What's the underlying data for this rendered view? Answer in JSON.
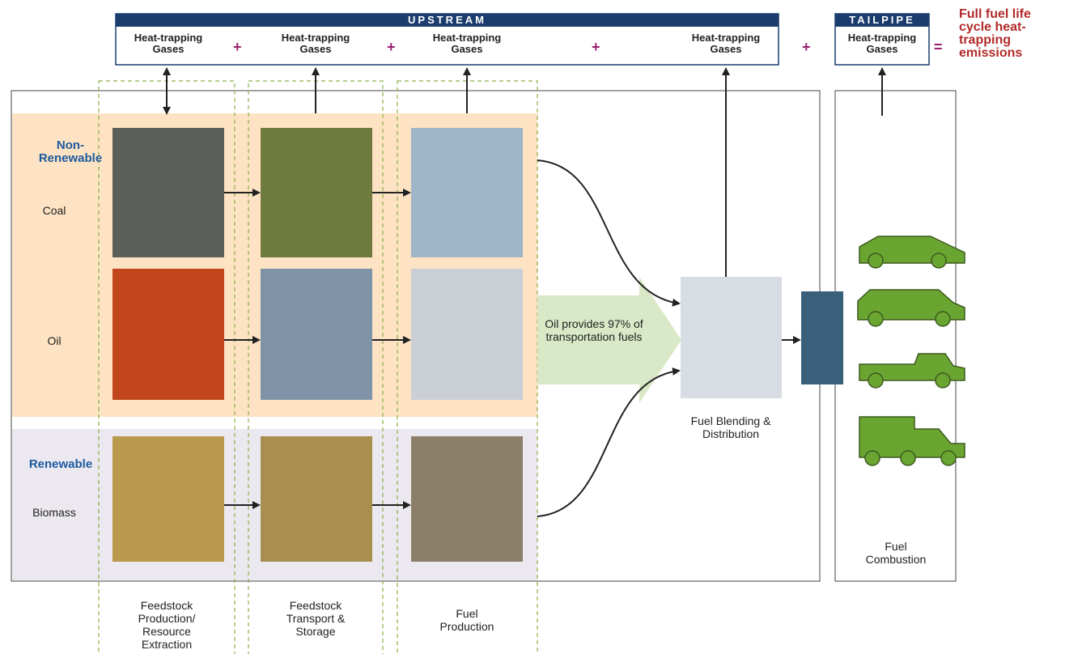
{
  "upstream": {
    "title": "UPSTREAM",
    "items": [
      "Heat-trapping Gases",
      "Heat-trapping Gases",
      "Heat-trapping Gases",
      "Heat-trapping Gases"
    ],
    "operators": [
      "+",
      "+",
      "+",
      "+"
    ]
  },
  "tailpipe": {
    "title": "TAILPIPE",
    "item": "Heat-trapping Gases",
    "operator": "=",
    "result": "Full fuel life cycle heat-trapping emissions"
  },
  "groups": [
    {
      "label": "Non-Renewable",
      "fuels": [
        "Coal",
        "Oil"
      ]
    },
    {
      "label": "Renewable",
      "fuels": [
        "Biomass"
      ]
    }
  ],
  "stages": [
    "Feedstock Production/ Resource Extraction",
    "Feedstock Transport & Storage",
    "Fuel Production"
  ],
  "callout": "Oil provides 97% of transportation fuels",
  "blending": "Fuel Blending & Distribution",
  "combustion": "Fuel Combustion"
}
